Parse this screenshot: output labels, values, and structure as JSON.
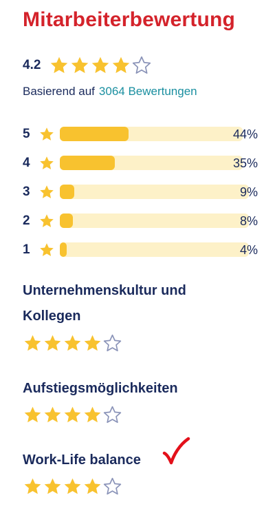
{
  "title": "Mitarbeiterbewertung",
  "overall": {
    "score": "4.2",
    "rating": 4,
    "max": 5
  },
  "based_on": {
    "prefix": "Basierend auf",
    "link": "3064 Bewertungen"
  },
  "distribution": [
    {
      "stars": "5",
      "percent_label": "44%",
      "fraction": 0.44
    },
    {
      "stars": "4",
      "percent_label": "35%",
      "fraction": 0.35
    },
    {
      "stars": "3",
      "percent_label": "9%",
      "fraction": 0.09
    },
    {
      "stars": "2",
      "percent_label": "8%",
      "fraction": 0.08
    },
    {
      "stars": "1",
      "percent_label": "4%",
      "fraction": 0.04
    }
  ],
  "categories": [
    {
      "label": "Unternehmenskultur und Kollegen",
      "rating": 4
    },
    {
      "label": "Aufstiegsmöglichkeiten",
      "rating": 4
    },
    {
      "label": "Work-Life balance",
      "rating": 4
    }
  ],
  "colors": {
    "title": "#d4232b",
    "star_filled": "#f8c22f",
    "star_empty_outline": "#8a93b8",
    "bar_track": "#fdf1c8",
    "bar_fill": "#f8c22f",
    "link": "#1a8fa0",
    "text": "#1a2a5c",
    "annotation_check": "#e3101a"
  },
  "icons": {
    "filled_star": "star-filled-icon",
    "empty_star": "star-outline-icon",
    "annotation": "checkmark-icon"
  }
}
